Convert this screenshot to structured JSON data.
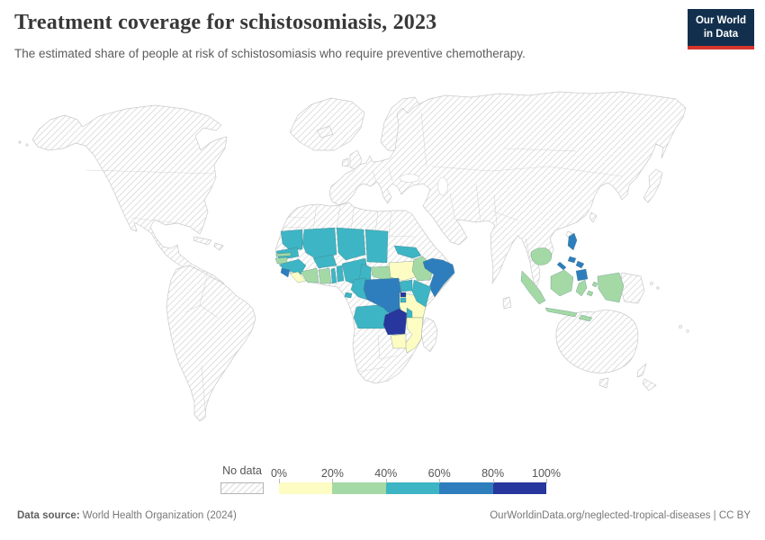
{
  "header": {
    "title": "Treatment coverage for schistosomiasis, 2023",
    "subtitle": "The estimated share of people at risk of schistosomiasis who require preventive chemotherapy.",
    "logo_line1": "Our World",
    "logo_line2": "in Data"
  },
  "chart_data": {
    "type": "choropleth",
    "title": "Treatment coverage for schistosomiasis, 2023",
    "unit": "%",
    "year": "2023",
    "legend": {
      "no_data_label": "No data",
      "tick_labels": [
        "0%",
        "20%",
        "40%",
        "60%",
        "80%",
        "100%"
      ],
      "bin_ranges": [
        [
          0,
          20
        ],
        [
          20,
          40
        ],
        [
          40,
          60
        ],
        [
          60,
          80
        ],
        [
          80,
          100
        ]
      ],
      "colors": [
        "#fdfcc3",
        "#a4d9a6",
        "#3db5c4",
        "#2e7ebd",
        "#27379d"
      ],
      "no_data_style": "diagonal-hatch"
    },
    "regions": [
      {
        "name": "Mauritania",
        "bin": 2
      },
      {
        "name": "Senegal",
        "bin": 2
      },
      {
        "name": "Gambia",
        "bin": 1
      },
      {
        "name": "Guinea-Bissau",
        "bin": 1
      },
      {
        "name": "Guinea",
        "bin": 2
      },
      {
        "name": "Sierra Leone",
        "bin": 3
      },
      {
        "name": "Liberia",
        "bin": 0
      },
      {
        "name": "Cote d'Ivoire",
        "bin": 1
      },
      {
        "name": "Ghana",
        "bin": 1
      },
      {
        "name": "Togo",
        "bin": 2
      },
      {
        "name": "Benin",
        "bin": 2
      },
      {
        "name": "Mali",
        "bin": 2
      },
      {
        "name": "Burkina Faso",
        "bin": 2
      },
      {
        "name": "Niger",
        "bin": 2
      },
      {
        "name": "Nigeria",
        "bin": 2
      },
      {
        "name": "Chad",
        "bin": 2
      },
      {
        "name": "Cameroon",
        "bin": 2
      },
      {
        "name": "Equatorial Guinea",
        "bin": 2
      },
      {
        "name": "Central African Republic",
        "bin": 1
      },
      {
        "name": "Eritrea",
        "bin": 2
      },
      {
        "name": "South Sudan",
        "bin": 0
      },
      {
        "name": "Ethiopia",
        "bin": 1
      },
      {
        "name": "Somalia",
        "bin": 3
      },
      {
        "name": "Uganda",
        "bin": 2
      },
      {
        "name": "Kenya",
        "bin": 2
      },
      {
        "name": "Rwanda",
        "bin": 4
      },
      {
        "name": "Burundi",
        "bin": 2
      },
      {
        "name": "Democratic Republic of Congo",
        "bin": 3
      },
      {
        "name": "Congo",
        "bin": 2
      },
      {
        "name": "Tanzania",
        "bin": 0
      },
      {
        "name": "Angola",
        "bin": 2
      },
      {
        "name": "Zambia",
        "bin": 4
      },
      {
        "name": "Malawi",
        "bin": 2
      },
      {
        "name": "Mozambique",
        "bin": 0
      },
      {
        "name": "Zimbabwe",
        "bin": 0
      },
      {
        "name": "Cambodia",
        "bin": 1
      },
      {
        "name": "Philippines",
        "bin": 3
      },
      {
        "name": "Indonesia",
        "bin": 1
      }
    ]
  },
  "footer": {
    "source_label": "Data source:",
    "source_value": "World Health Organization (2024)",
    "credit": "OurWorldinData.org/neglected-tropical-diseases | CC BY"
  }
}
